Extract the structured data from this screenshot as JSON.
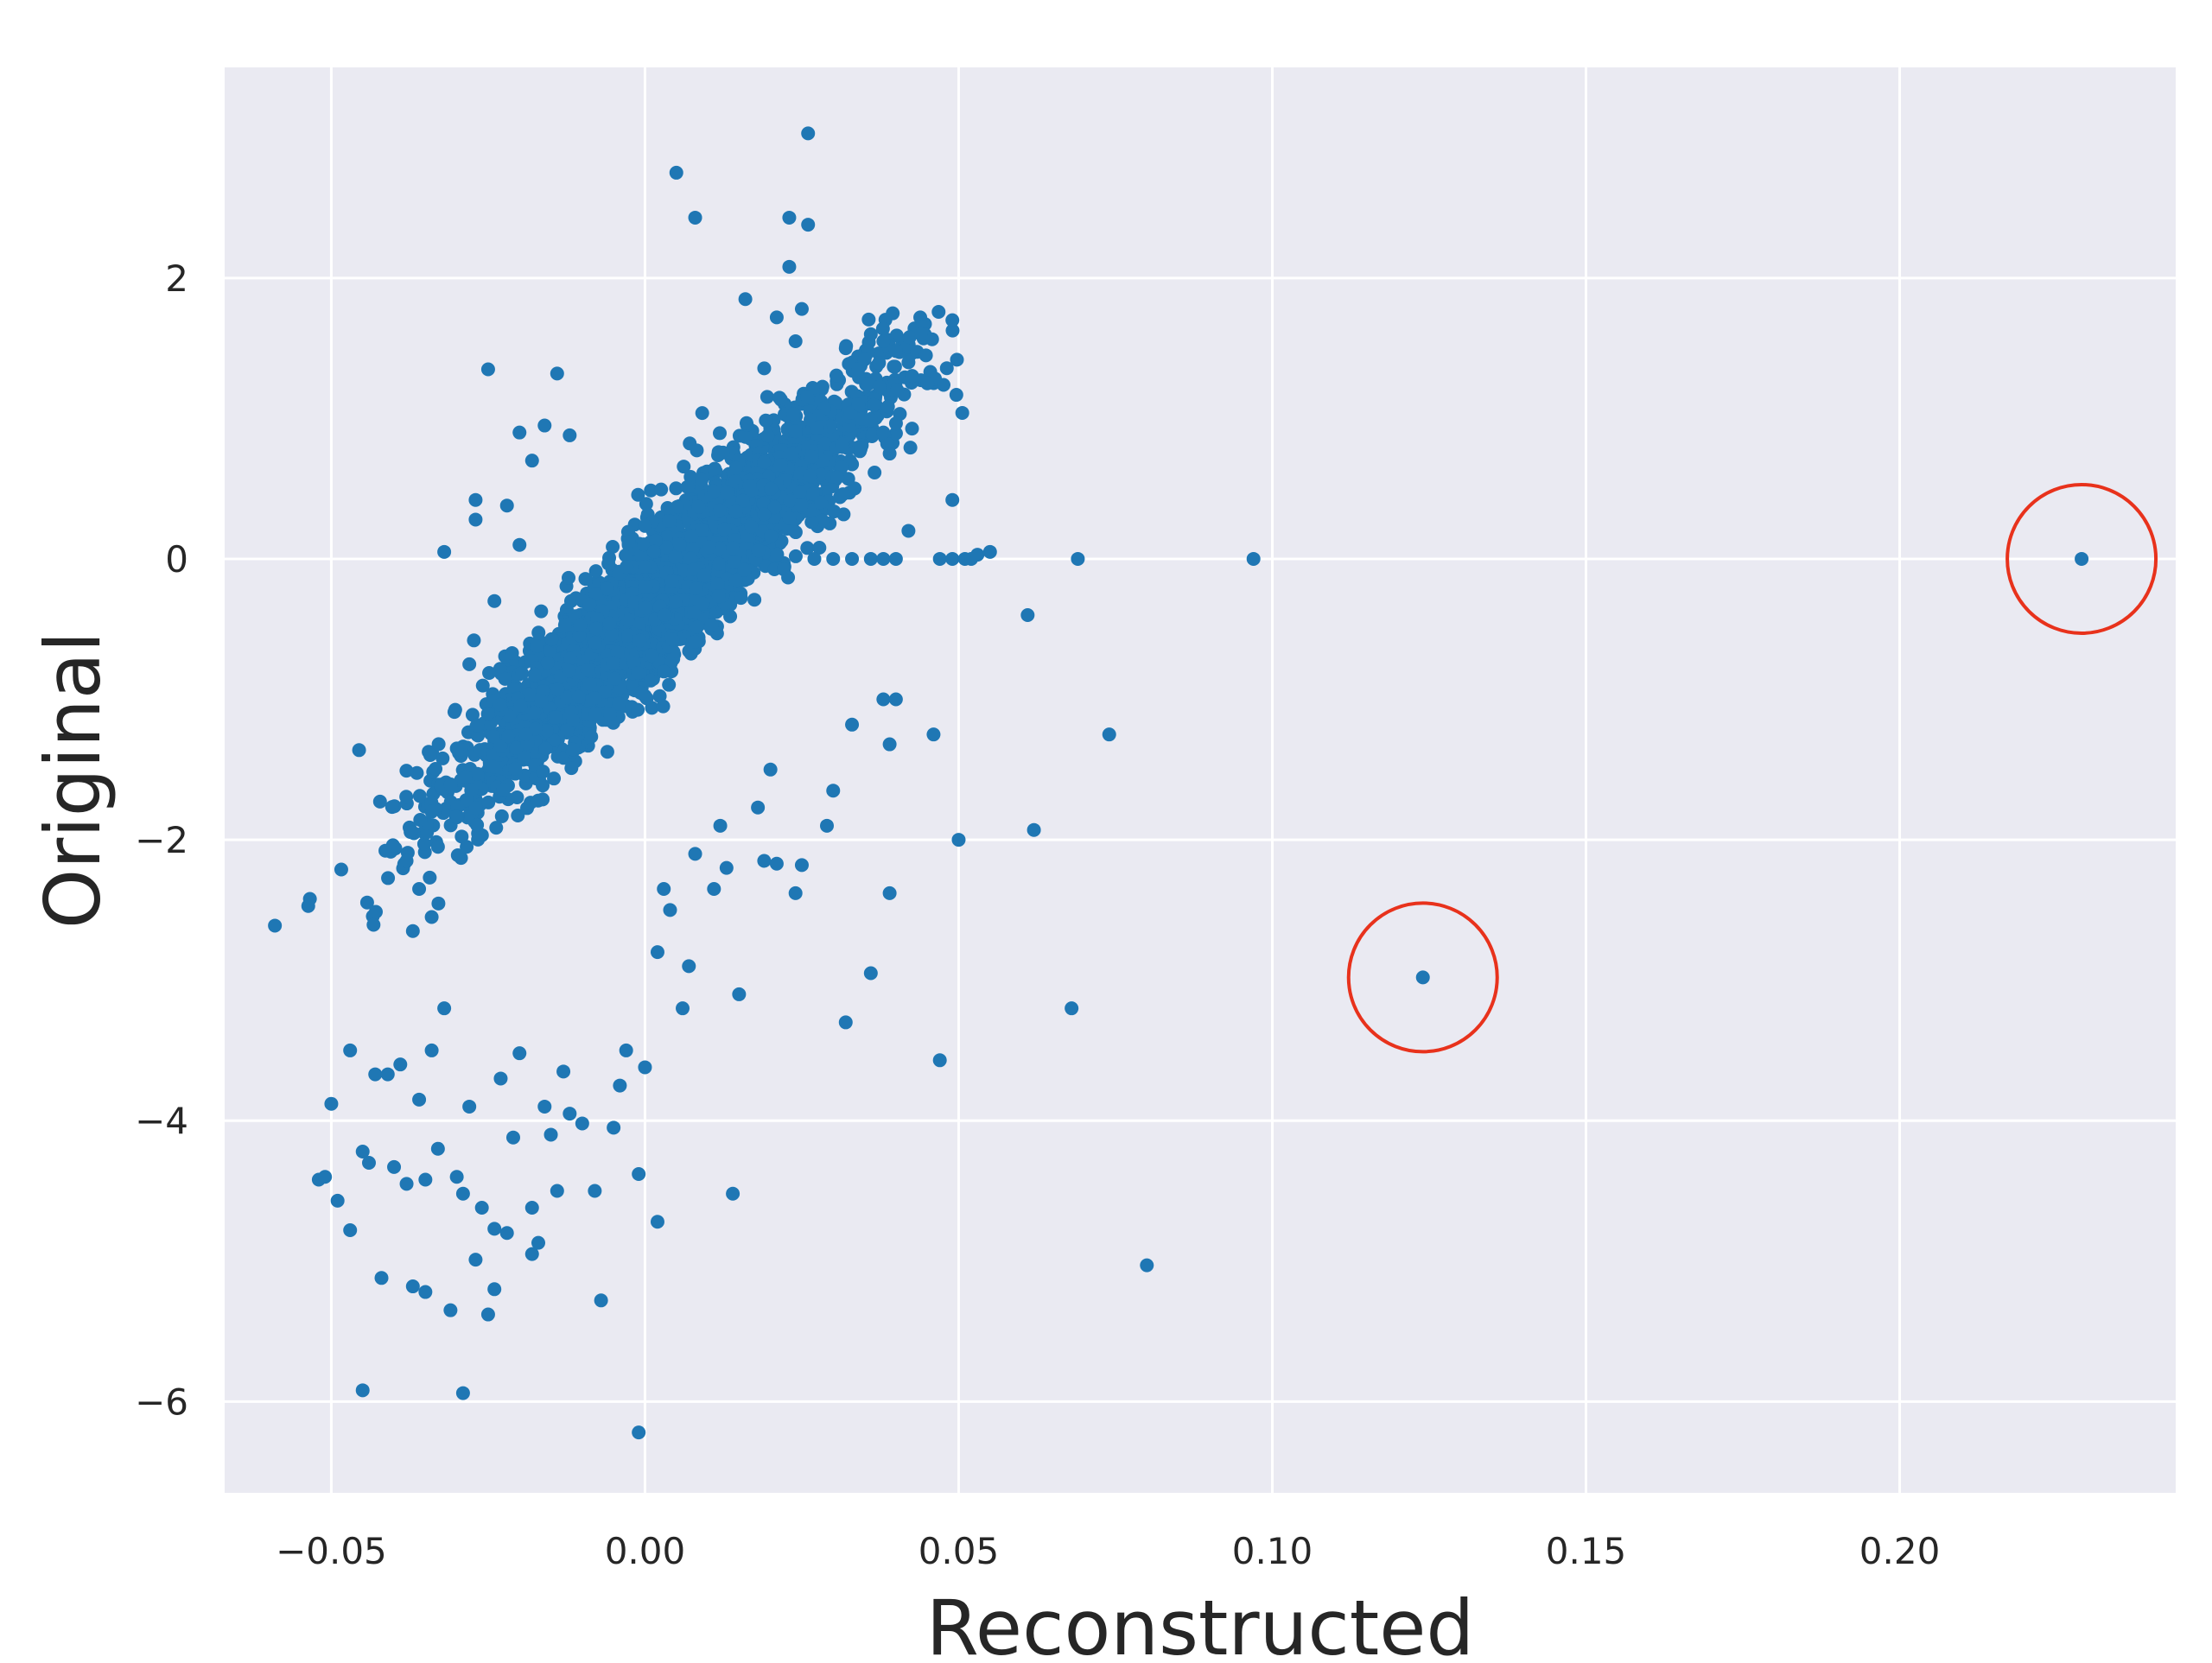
{
  "chart_data": {
    "type": "scatter",
    "title": "",
    "xlabel": "Reconstructed",
    "ylabel": "Original",
    "xlim": [
      -0.067,
      0.244
    ],
    "ylim": [
      -6.65,
      3.5
    ],
    "xticks": [
      -0.05,
      0.0,
      0.05,
      0.1,
      0.15,
      0.2
    ],
    "xtick_labels": [
      "−0.05",
      "0.00",
      "0.05",
      "0.10",
      "0.15",
      "0.20"
    ],
    "yticks": [
      -6,
      -4,
      -2,
      0,
      2
    ],
    "ytick_labels": [
      "−6",
      "−4",
      "−2",
      "0",
      "2"
    ],
    "grid": true,
    "legend": "none",
    "colors": {
      "background": "#eaeaf2",
      "grid": "#ffffff",
      "point": "#1f77b4",
      "highlight": "#e8321c"
    },
    "dense_cluster": {
      "x_center": 0.004,
      "y_center": -0.2,
      "description_values": {
        "x_std": 0.011,
        "y_std": 0.75,
        "slope": 48,
        "count": 3000
      }
    },
    "points": [
      [
        -0.052,
        -4.42
      ],
      [
        -0.051,
        -4.4
      ],
      [
        -0.05,
        -3.88
      ],
      [
        -0.049,
        -4.57
      ],
      [
        -0.047,
        -4.78
      ],
      [
        -0.047,
        -3.5
      ],
      [
        -0.045,
        -5.92
      ],
      [
        -0.045,
        -4.22
      ],
      [
        -0.044,
        -4.3
      ],
      [
        -0.043,
        -3.67
      ],
      [
        -0.042,
        -5.12
      ],
      [
        -0.041,
        -3.67
      ],
      [
        -0.04,
        -4.33
      ],
      [
        -0.039,
        -3.6
      ],
      [
        -0.038,
        -4.45
      ],
      [
        -0.037,
        -5.18
      ],
      [
        -0.036,
        -3.85
      ],
      [
        -0.035,
        -5.22
      ],
      [
        -0.035,
        -4.42
      ],
      [
        -0.034,
        -3.5
      ],
      [
        -0.033,
        -4.2
      ],
      [
        -0.032,
        -3.2
      ],
      [
        -0.031,
        -5.35
      ],
      [
        -0.03,
        -4.4
      ],
      [
        -0.029,
        -5.94
      ],
      [
        -0.029,
        -4.52
      ],
      [
        -0.028,
        -3.9
      ],
      [
        -0.027,
        -4.99
      ],
      [
        -0.026,
        -4.62
      ],
      [
        -0.025,
        -5.38
      ],
      [
        -0.024,
        -4.77
      ],
      [
        -0.024,
        -5.2
      ],
      [
        -0.023,
        -3.7
      ],
      [
        -0.022,
        -4.8
      ],
      [
        -0.021,
        -4.12
      ],
      [
        -0.02,
        -3.52
      ],
      [
        -0.018,
        -4.62
      ],
      [
        -0.018,
        -4.95
      ],
      [
        -0.017,
        -4.87
      ],
      [
        -0.016,
        -3.9
      ],
      [
        -0.015,
        -4.1
      ],
      [
        -0.014,
        -4.5
      ],
      [
        -0.013,
        -3.65
      ],
      [
        -0.012,
        -3.95
      ],
      [
        -0.01,
        -4.02
      ],
      [
        -0.008,
        -4.5
      ],
      [
        -0.007,
        -5.28
      ],
      [
        -0.005,
        -4.05
      ],
      [
        -0.004,
        -3.75
      ],
      [
        -0.003,
        -3.5
      ],
      [
        -0.001,
        -4.38
      ],
      [
        -0.001,
        -6.22
      ],
      [
        0.0,
        -3.62
      ],
      [
        0.002,
        -4.72
      ],
      [
        0.002,
        -2.8
      ],
      [
        0.006,
        -3.2
      ],
      [
        0.007,
        -2.9
      ],
      [
        0.014,
        -4.52
      ],
      [
        0.015,
        -3.1
      ],
      [
        0.013,
        -2.2
      ],
      [
        -0.032,
        0.05
      ],
      [
        -0.027,
        0.42
      ],
      [
        -0.027,
        0.28
      ],
      [
        -0.024,
        -0.3
      ],
      [
        -0.014,
        1.32
      ],
      [
        0.005,
        2.75
      ],
      [
        0.008,
        2.43
      ],
      [
        0.023,
        2.43
      ],
      [
        0.026,
        2.38
      ],
      [
        0.026,
        3.03
      ],
      [
        0.023,
        2.08
      ],
      [
        0.016,
        1.85
      ],
      [
        0.021,
        1.72
      ],
      [
        0.024,
        1.55
      ],
      [
        0.025,
        1.78
      ],
      [
        0.032,
        1.5
      ],
      [
        0.034,
        1.35
      ],
      [
        0.035,
        1.42
      ],
      [
        0.036,
        1.6
      ],
      [
        0.038,
        1.55
      ],
      [
        0.04,
        1.48
      ],
      [
        0.042,
        1.4
      ],
      [
        0.044,
        1.6
      ],
      [
        0.045,
        1.25
      ],
      [
        0.049,
        1.7
      ],
      [
        0.034,
        1.1
      ],
      [
        0.038,
        0.9
      ],
      [
        0.039,
        0.75
      ],
      [
        0.042,
        0.2
      ],
      [
        0.049,
        0.42
      ],
      [
        0.027,
        0.0
      ],
      [
        0.03,
        0.0
      ],
      [
        0.033,
        0.0
      ],
      [
        0.036,
        0.0
      ],
      [
        0.038,
        0.0
      ],
      [
        0.04,
        0.0
      ],
      [
        0.047,
        0.0
      ],
      [
        0.049,
        0.0
      ],
      [
        0.051,
        0.0
      ],
      [
        0.052,
        0.0
      ],
      [
        0.053,
        0.03
      ],
      [
        0.055,
        0.05
      ],
      [
        0.069,
        0.0
      ],
      [
        0.097,
        0.0
      ],
      [
        0.229,
        0.0
      ],
      [
        0.061,
        -0.4
      ],
      [
        0.038,
        -1.0
      ],
      [
        0.04,
        -1.0
      ],
      [
        0.046,
        -1.25
      ],
      [
        0.074,
        -1.25
      ],
      [
        0.033,
        -1.18
      ],
      [
        0.039,
        -1.32
      ],
      [
        0.03,
        -1.65
      ],
      [
        0.029,
        -1.9
      ],
      [
        0.05,
        -2.0
      ],
      [
        0.062,
        -1.93
      ],
      [
        0.024,
        -2.38
      ],
      [
        0.039,
        -2.38
      ],
      [
        0.036,
        -2.95
      ],
      [
        0.032,
        -3.3
      ],
      [
        0.047,
        -3.57
      ],
      [
        0.068,
        -3.2
      ],
      [
        0.08,
        -5.03
      ],
      [
        0.124,
        -2.98
      ],
      [
        0.019,
        -2.15
      ],
      [
        0.021,
        -2.17
      ],
      [
        0.025,
        -2.18
      ],
      [
        0.018,
        -1.77
      ],
      [
        0.02,
        -1.5
      ],
      [
        -0.025,
        1.35
      ],
      [
        -0.02,
        0.9
      ],
      [
        -0.028,
        -0.75
      ],
      [
        -0.03,
        -1.35
      ],
      [
        -0.034,
        -2.55
      ],
      [
        -0.037,
        -2.65
      ],
      [
        -0.038,
        -2.15
      ],
      [
        -0.036,
        -2.35
      ],
      [
        -0.034,
        -1.8
      ],
      [
        -0.033,
        -2.05
      ],
      [
        0.012,
        -1.9
      ],
      [
        0.011,
        -2.35
      ],
      [
        0.008,
        -2.1
      ],
      [
        0.004,
        -2.5
      ],
      [
        0.003,
        -2.35
      ],
      [
        -0.022,
        0.38
      ],
      [
        -0.02,
        0.1
      ],
      [
        -0.018,
        0.7
      ],
      [
        -0.016,
        0.95
      ],
      [
        -0.012,
        0.88
      ]
    ],
    "highlighted_points": [
      [
        0.124,
        -2.98
      ],
      [
        0.229,
        0.0
      ]
    ]
  }
}
